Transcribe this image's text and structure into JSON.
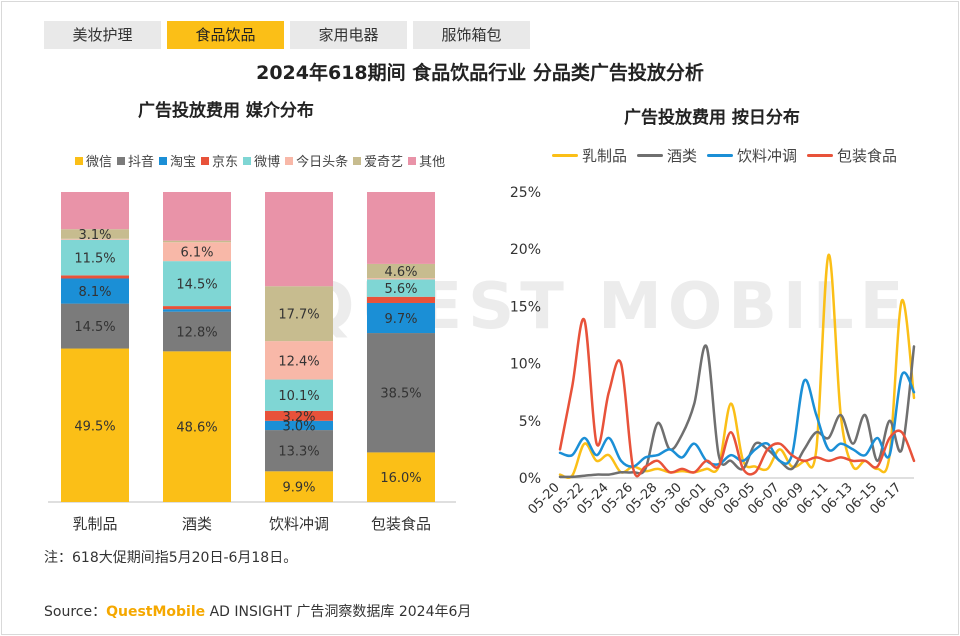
{
  "tabs": [
    {
      "label": "美妆护理",
      "active": false
    },
    {
      "label": "食品饮品",
      "active": true
    },
    {
      "label": "家用电器",
      "active": false
    },
    {
      "label": "服饰箱包",
      "active": false
    }
  ],
  "title": "2024年618期间 食品饮品行业 分品类广告投放分析",
  "watermark": "QUEST MOBILE",
  "note": "注：618大促期间指5月20日-6月18日。",
  "source": {
    "prefix": "Source：",
    "brand": "QuestMobile",
    "rest": " AD INSIGHT 广告洞察数据库 2024年6月"
  },
  "chart_data": [
    {
      "type": "bar",
      "stacked": true,
      "title": "广告投放费用 媒介分布",
      "categories": [
        "乳制品",
        "酒类",
        "饮料冲调",
        "包装食品"
      ],
      "ylim": [
        0,
        100
      ],
      "grid": false,
      "legend_position": "top",
      "series": [
        {
          "name": "微信",
          "color": "#fbbf17",
          "values": [
            49.5,
            48.6,
            9.9,
            16.0
          ],
          "labels": [
            "49.5%",
            "48.6%",
            "9.9%",
            "16.0%"
          ]
        },
        {
          "name": "抖音",
          "color": "#7b7b7b",
          "values": [
            14.5,
            12.8,
            13.3,
            38.5
          ],
          "labels": [
            "14.5%",
            "12.8%",
            "13.3%",
            "38.5%"
          ]
        },
        {
          "name": "淘宝",
          "color": "#1b8fd6",
          "values": [
            8.1,
            0.8,
            3.0,
            9.7
          ],
          "labels": [
            "8.1%",
            "",
            "3.0%",
            "9.7%"
          ]
        },
        {
          "name": "京东",
          "color": "#e8523a",
          "values": [
            1.0,
            1.0,
            3.2,
            2.0
          ],
          "labels": [
            "",
            "",
            "3.2%",
            ""
          ]
        },
        {
          "name": "微博",
          "color": "#7fd6d4",
          "values": [
            11.5,
            14.5,
            10.1,
            5.6
          ],
          "labels": [
            "11.5%",
            "14.5%",
            "10.1%",
            "5.6%"
          ]
        },
        {
          "name": "今日头条",
          "color": "#f8b8a8",
          "values": [
            0.3,
            6.1,
            12.4,
            0.4
          ],
          "labels": [
            "",
            "6.1%",
            "12.4%",
            ""
          ]
        },
        {
          "name": "爱奇艺",
          "color": "#c7bc8f",
          "values": [
            3.1,
            0.5,
            17.7,
            4.6
          ],
          "labels": [
            "3.1%",
            "",
            "17.7%",
            "4.6%"
          ]
        },
        {
          "name": "其他",
          "color": "#e993a8",
          "values": [
            12.0,
            15.7,
            30.4,
            23.2
          ],
          "labels": [
            "",
            "",
            "",
            ""
          ]
        }
      ]
    },
    {
      "type": "line",
      "title": "广告投放费用 按日分布",
      "x": [
        "05-20",
        "05-21",
        "05-22",
        "05-23",
        "05-24",
        "05-25",
        "05-26",
        "05-27",
        "05-28",
        "05-29",
        "05-30",
        "05-31",
        "06-01",
        "06-02",
        "06-03",
        "06-04",
        "06-05",
        "06-06",
        "06-07",
        "06-08",
        "06-09",
        "06-10",
        "06-11",
        "06-12",
        "06-13",
        "06-14",
        "06-15",
        "06-16",
        "06-17",
        "06-18"
      ],
      "x_tick_labels": [
        "05-20",
        "05-22",
        "05-24",
        "05-26",
        "05-28",
        "05-30",
        "06-01",
        "06-03",
        "06-05",
        "06-07",
        "06-09",
        "06-11",
        "06-13",
        "06-15",
        "06-17"
      ],
      "y_ticks": [
        "0%",
        "5%",
        "10%",
        "15%",
        "20%",
        "25%"
      ],
      "ylim": [
        0,
        25
      ],
      "grid": false,
      "legend_position": "top",
      "series": [
        {
          "name": "乳制品",
          "color": "#fbbf17",
          "values": [
            0.3,
            0.2,
            3.0,
            1.5,
            2.0,
            0.5,
            1.0,
            0.6,
            0.8,
            0.5,
            0.6,
            0.5,
            0.8,
            1.0,
            6.5,
            1.5,
            1.0,
            0.8,
            2.5,
            1.0,
            1.5,
            2.5,
            19.5,
            5.5,
            1.0,
            1.5,
            0.8,
            2.0,
            15.5,
            7.0
          ]
        },
        {
          "name": "酒类",
          "color": "#6f6f6f",
          "values": [
            0.1,
            0.1,
            0.2,
            0.3,
            0.3,
            0.5,
            0.5,
            0.8,
            4.8,
            2.5,
            3.8,
            6.5,
            11.5,
            2.0,
            1.5,
            0.8,
            3.0,
            2.5,
            1.5,
            0.8,
            2.5,
            4.0,
            3.5,
            5.5,
            3.0,
            5.5,
            1.5,
            5.0,
            2.5,
            11.5
          ]
        },
        {
          "name": "饮料冲调",
          "color": "#1b8fd6",
          "values": [
            2.2,
            2.0,
            3.5,
            2.0,
            3.5,
            1.5,
            1.0,
            1.8,
            2.0,
            2.5,
            1.8,
            3.0,
            1.5,
            1.2,
            2.0,
            1.5,
            2.5,
            3.0,
            1.5,
            2.0,
            8.5,
            5.5,
            2.5,
            3.0,
            2.5,
            2.0,
            3.5,
            2.0,
            9.0,
            7.5
          ]
        },
        {
          "name": "包装食品",
          "color": "#e8523a",
          "values": [
            2.5,
            8.0,
            13.8,
            3.0,
            7.5,
            10.0,
            0.8,
            1.0,
            1.5,
            0.5,
            0.8,
            0.5,
            1.5,
            1.0,
            4.0,
            0.8,
            0.5,
            2.5,
            3.0,
            2.0,
            1.5,
            1.8,
            1.5,
            1.8,
            1.5,
            1.5,
            1.0,
            3.5,
            4.0,
            1.5
          ]
        }
      ]
    }
  ]
}
